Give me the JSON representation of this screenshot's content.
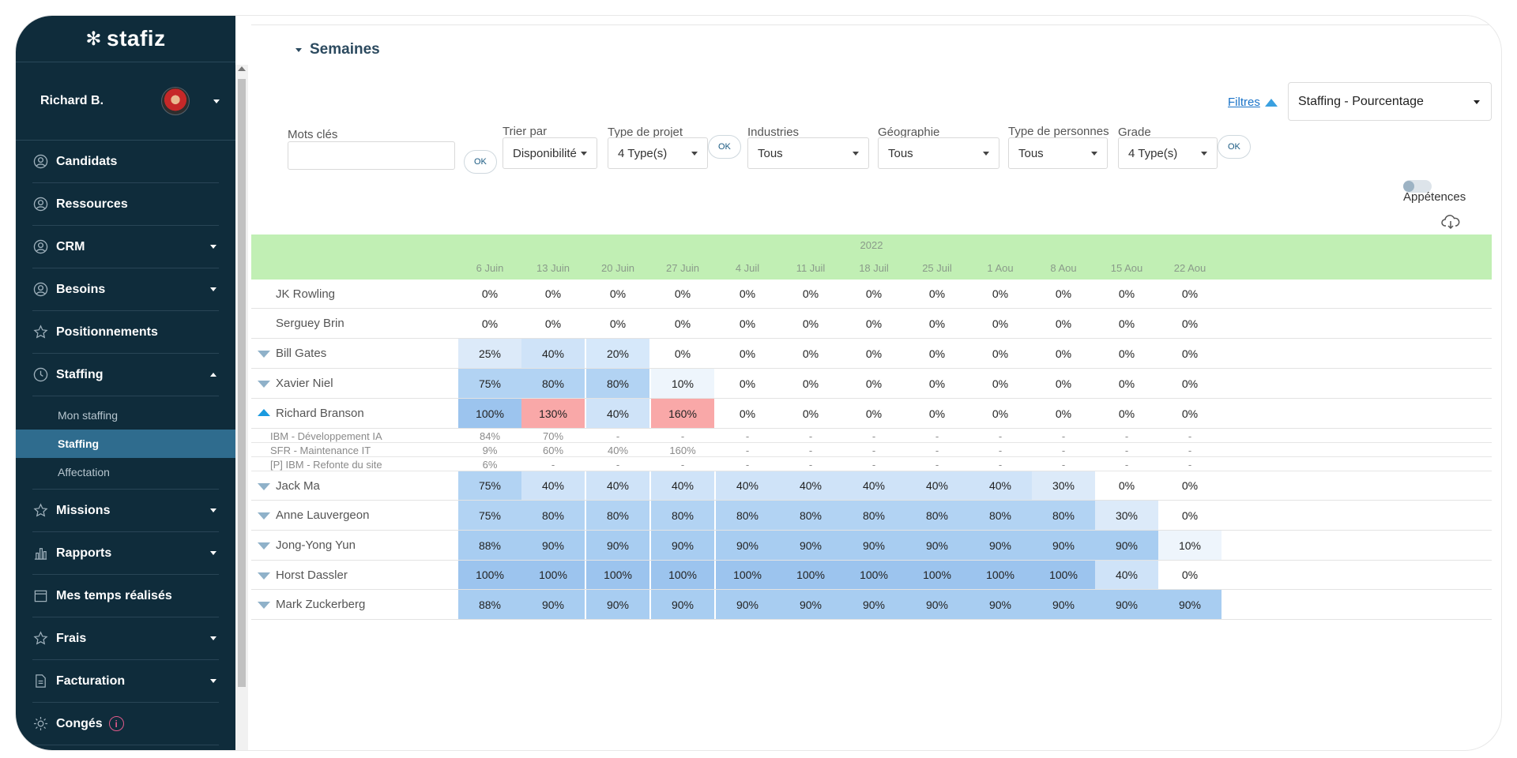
{
  "app": {
    "logo": "stafiz"
  },
  "user": {
    "name": "Richard B."
  },
  "nav": [
    {
      "label": "Candidats",
      "icon": "user-circle-icon",
      "caret": ""
    },
    {
      "label": "Ressources",
      "icon": "user-circle-icon",
      "caret": ""
    },
    {
      "label": "CRM",
      "icon": "user-circle-icon",
      "caret": "down"
    },
    {
      "label": "Besoins",
      "icon": "user-circle-icon",
      "caret": "down"
    },
    {
      "label": "Positionnements",
      "icon": "star-icon",
      "caret": ""
    },
    {
      "label": "Staffing",
      "icon": "clock-icon",
      "caret": "up"
    }
  ],
  "staffing_sub": [
    "Mon staffing",
    "Staffing",
    "Affectation"
  ],
  "nav2": [
    {
      "label": "Missions",
      "icon": "star-icon",
      "caret": "down"
    },
    {
      "label": "Rapports",
      "icon": "bar-chart-icon",
      "caret": "down"
    },
    {
      "label": "Mes temps réalisés",
      "icon": "calendar-icon",
      "caret": ""
    },
    {
      "label": "Frais",
      "icon": "star-icon",
      "caret": "down"
    },
    {
      "label": "Facturation",
      "icon": "document-icon",
      "caret": "down"
    },
    {
      "label": "Congés",
      "icon": "sun-icon",
      "caret": ""
    }
  ],
  "section": {
    "title": "Semaines"
  },
  "filters_link": "Filtres",
  "view_select": "Staffing - Pourcentage",
  "filters": {
    "keywords": {
      "label": "Mots clés",
      "value": ""
    },
    "sort": {
      "label": "Trier par",
      "value": "Disponibilité"
    },
    "project_type": {
      "label": "Type de projet",
      "value": "4 Type(s)"
    },
    "industries": {
      "label": "Industries",
      "value": "Tous"
    },
    "geography": {
      "label": "Géographie",
      "value": "Tous"
    },
    "person_type": {
      "label": "Type de personnes",
      "value": "Tous"
    },
    "grade": {
      "label": "Grade",
      "value": "4 Type(s)"
    },
    "ok": "OK"
  },
  "toggle_label": "Appétences",
  "grid": {
    "year": "2022",
    "weeks": [
      "6 Juin",
      "13 Juin",
      "20 Juin",
      "27 Juin",
      "4 Juil",
      "11 Juil",
      "18 Juil",
      "25 Juil",
      "1 Aou",
      "8 Aou",
      "15 Aou",
      "22 Aou"
    ],
    "rows": [
      {
        "name": "JK Rowling",
        "expander": "",
        "values": [
          "0%",
          "0%",
          "0%",
          "0%",
          "0%",
          "0%",
          "0%",
          "0%",
          "0%",
          "0%",
          "0%",
          "0%"
        ]
      },
      {
        "name": "Serguey Brin",
        "expander": "",
        "values": [
          "0%",
          "0%",
          "0%",
          "0%",
          "0%",
          "0%",
          "0%",
          "0%",
          "0%",
          "0%",
          "0%",
          "0%"
        ]
      },
      {
        "name": "Bill Gates",
        "expander": "down",
        "values": [
          "25%",
          "40%",
          "20%",
          "0%",
          "0%",
          "0%",
          "0%",
          "0%",
          "0%",
          "0%",
          "0%",
          "0%"
        ]
      },
      {
        "name": "Xavier Niel",
        "expander": "down",
        "values": [
          "75%",
          "80%",
          "80%",
          "10%",
          "0%",
          "0%",
          "0%",
          "0%",
          "0%",
          "0%",
          "0%",
          "0%"
        ]
      },
      {
        "name": "Richard Branson",
        "expander": "up",
        "values": [
          "100%",
          "130%",
          "40%",
          "160%",
          "0%",
          "0%",
          "0%",
          "0%",
          "0%",
          "0%",
          "0%",
          "0%"
        ],
        "details": [
          {
            "name": "IBM - Développement IA",
            "values": [
              "84%",
              "70%",
              "-",
              "-",
              "-",
              "-",
              "-",
              "-",
              "-",
              "-",
              "-",
              "-"
            ]
          },
          {
            "name": "SFR - Maintenance IT",
            "values": [
              "9%",
              "60%",
              "40%",
              "160%",
              "-",
              "-",
              "-",
              "-",
              "-",
              "-",
              "-",
              "-"
            ]
          },
          {
            "name": "[P] IBM - Refonte du site",
            "values": [
              "6%",
              "-",
              "-",
              "-",
              "-",
              "-",
              "-",
              "-",
              "-",
              "-",
              "-",
              "-"
            ]
          }
        ]
      },
      {
        "name": "Jack Ma",
        "expander": "down",
        "values": [
          "75%",
          "40%",
          "40%",
          "40%",
          "40%",
          "40%",
          "40%",
          "40%",
          "40%",
          "30%",
          "0%",
          "0%"
        ]
      },
      {
        "name": "Anne Lauvergeon",
        "expander": "down",
        "values": [
          "75%",
          "80%",
          "80%",
          "80%",
          "80%",
          "80%",
          "80%",
          "80%",
          "80%",
          "80%",
          "30%",
          "0%"
        ]
      },
      {
        "name": "Jong-Yong Yun",
        "expander": "down",
        "values": [
          "88%",
          "90%",
          "90%",
          "90%",
          "90%",
          "90%",
          "90%",
          "90%",
          "90%",
          "90%",
          "90%",
          "10%"
        ]
      },
      {
        "name": "Horst Dassler",
        "expander": "down",
        "values": [
          "100%",
          "100%",
          "100%",
          "100%",
          "100%",
          "100%",
          "100%",
          "100%",
          "100%",
          "100%",
          "40%",
          "0%"
        ]
      },
      {
        "name": "Mark Zuckerberg",
        "expander": "down",
        "values": [
          "88%",
          "90%",
          "90%",
          "90%",
          "90%",
          "90%",
          "90%",
          "90%",
          "90%",
          "90%",
          "90%",
          "90%"
        ]
      }
    ]
  },
  "colors": {
    "sidebar": "#0f2c3b",
    "header_green": "#c1efb4",
    "over_allocated": "#f9a8a8",
    "accent": "#1a9adf"
  }
}
